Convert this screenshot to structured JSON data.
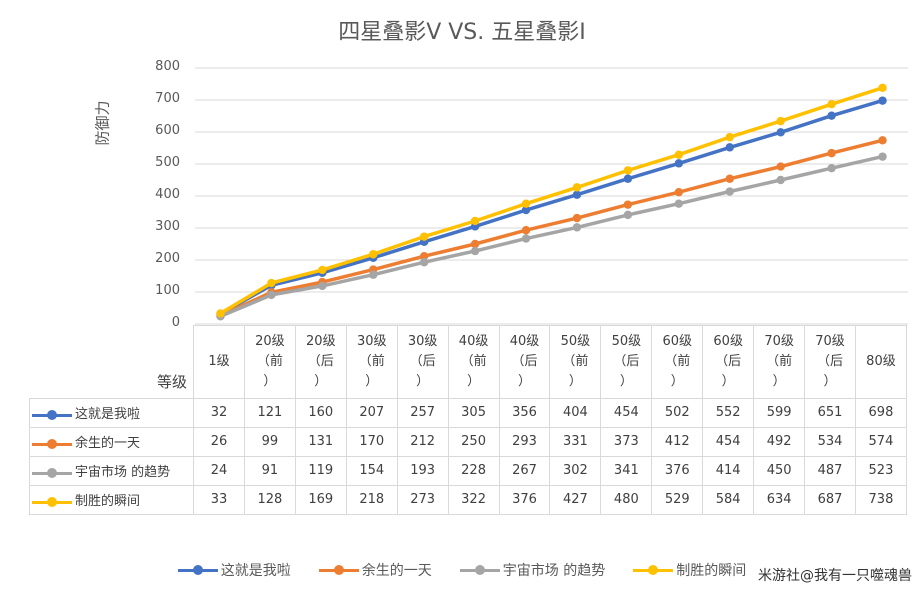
{
  "chart_data": {
    "type": "line",
    "title": "四星叠影V VS. 五星叠影I",
    "xlabel": "等级",
    "ylabel": "防御力",
    "ylim": [
      0,
      800
    ],
    "yticks": [
      0,
      100,
      200,
      300,
      400,
      500,
      600,
      700,
      800
    ],
    "grid": true,
    "legend_position": "bottom",
    "categories": [
      [
        "1级"
      ],
      [
        "20级",
        "（前",
        "）"
      ],
      [
        "20级",
        "（后",
        "）"
      ],
      [
        "30级",
        "（前",
        "）"
      ],
      [
        "30级",
        "（后",
        "）"
      ],
      [
        "40级",
        "（前",
        "）"
      ],
      [
        "40级",
        "（后",
        "）"
      ],
      [
        "50级",
        "（前",
        "）"
      ],
      [
        "50级",
        "（后",
        "）"
      ],
      [
        "60级",
        "（前",
        "）"
      ],
      [
        "60级",
        "（后",
        "）"
      ],
      [
        "70级",
        "（前",
        "）"
      ],
      [
        "70级",
        "（后",
        "）"
      ],
      [
        "80级"
      ]
    ],
    "series": [
      {
        "name": "这就是我啦",
        "color": "#4472c4",
        "values": [
          32,
          121,
          160,
          207,
          257,
          305,
          356,
          404,
          454,
          502,
          552,
          599,
          651,
          698
        ]
      },
      {
        "name": "余生的一天",
        "color": "#ed7d31",
        "values": [
          26,
          99,
          131,
          170,
          212,
          250,
          293,
          331,
          373,
          412,
          454,
          492,
          534,
          574
        ]
      },
      {
        "name": "宇宙市场 的趋势",
        "color": "#a5a5a5",
        "values": [
          24,
          91,
          119,
          154,
          193,
          228,
          267,
          302,
          341,
          376,
          414,
          450,
          487,
          523
        ]
      },
      {
        "name": "制胜的瞬间",
        "color": "#ffc000",
        "values": [
          33,
          128,
          169,
          218,
          273,
          322,
          376,
          427,
          480,
          529,
          584,
          634,
          687,
          738
        ]
      }
    ]
  },
  "watermark": "米游社@我有一只噬魂兽"
}
